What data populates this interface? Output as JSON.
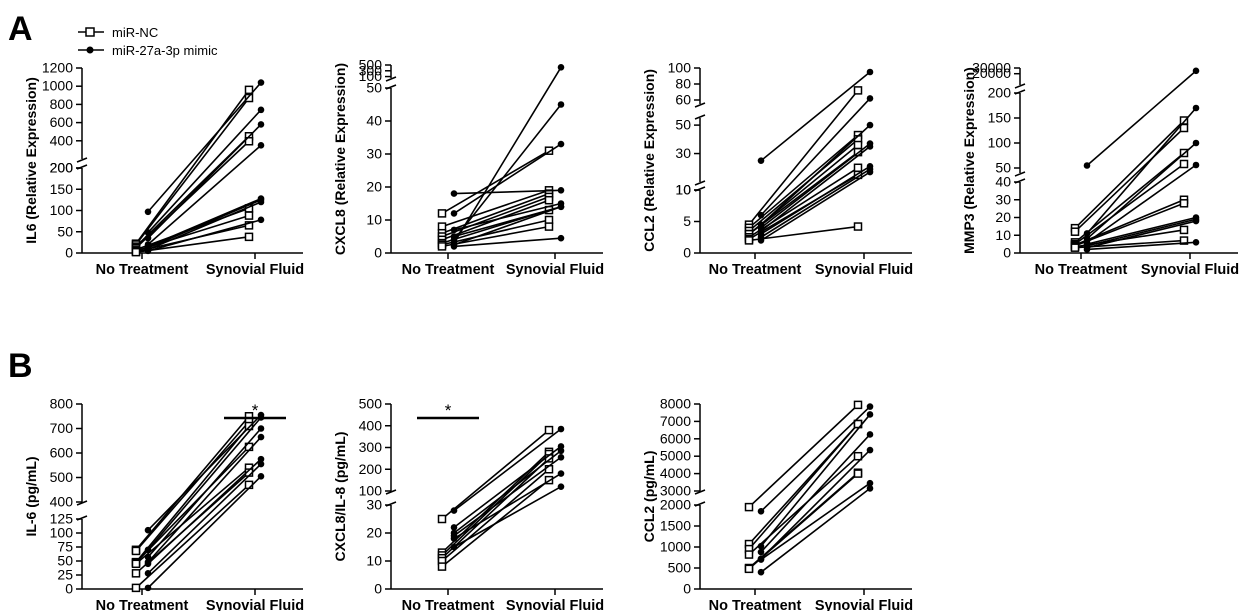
{
  "figure": {
    "panel_labels": [
      "A",
      "B"
    ]
  },
  "legend": {
    "items": [
      {
        "label": "miR-NC",
        "marker": "open-square"
      },
      {
        "label": "miR-27a-3p mimic",
        "marker": "filled-circle"
      }
    ]
  },
  "colors": {
    "ink": "#000000",
    "background": "#ffffff"
  },
  "chart_data": [
    {
      "panel": "A",
      "type": "scatter",
      "subtype": "paired before-after with broken y-axis",
      "ylabel": "IL6 (Relative Expression)",
      "categories": [
        "No Treatment",
        "Synovial Fluid"
      ],
      "y_segments": [
        {
          "range": [
            0,
            200
          ],
          "ticks": [
            0,
            50,
            100,
            150,
            200
          ]
        },
        {
          "range": [
            200,
            1200
          ],
          "ticks": [
            200,
            400,
            600,
            800,
            1000,
            1200
          ]
        }
      ],
      "series": [
        {
          "name": "miR-NC",
          "pairs": [
            [
              22,
              960
            ],
            [
              20,
              870
            ],
            [
              15,
              450
            ],
            [
              12,
              395
            ],
            [
              8,
              105
            ],
            [
              5,
              88
            ],
            [
              3,
              65
            ],
            [
              2,
              38
            ]
          ]
        },
        {
          "name": "miR-27a-3p mimic",
          "pairs": [
            [
              97,
              1040
            ],
            [
              48,
              740
            ],
            [
              35,
              580
            ],
            [
              20,
              350
            ],
            [
              15,
              128
            ],
            [
              12,
              125
            ],
            [
              8,
              120
            ],
            [
              5,
              78
            ]
          ]
        }
      ],
      "significance": []
    },
    {
      "panel": "A",
      "type": "scatter",
      "subtype": "paired before-after with broken y-axis",
      "ylabel": "CXCL8 (Relative Expression)",
      "categories": [
        "No Treatment",
        "Synovial Fluid"
      ],
      "y_segments": [
        {
          "range": [
            0,
            50
          ],
          "ticks": [
            0,
            10,
            20,
            30,
            40,
            50
          ]
        },
        {
          "range": [
            50,
            500
          ],
          "ticks": [
            100,
            300,
            500
          ]
        }
      ],
      "series": [
        {
          "name": "miR-NC",
          "pairs": [
            [
              12,
              31
            ],
            [
              8,
              19
            ],
            [
              6,
              18
            ],
            [
              5,
              17
            ],
            [
              4,
              16
            ],
            [
              3,
              13
            ],
            [
              2.5,
              10
            ],
            [
              2,
              8
            ]
          ]
        },
        {
          "name": "miR-27a-3p mimic",
          "pairs": [
            [
              18,
              19
            ],
            [
              12,
              33
            ],
            [
              7,
              15
            ],
            [
              5,
              14
            ],
            [
              4,
              45
            ],
            [
              3,
              420
            ],
            [
              2.5,
              14
            ],
            [
              2,
              4.5
            ]
          ]
        }
      ],
      "significance": []
    },
    {
      "panel": "A",
      "type": "scatter",
      "subtype": "paired before-after with broken y-axis",
      "ylabel": "CCL2 (Relative Expression)",
      "categories": [
        "No Treatment",
        "Synovial Fluid"
      ],
      "y_segments": [
        {
          "range": [
            0,
            10
          ],
          "ticks": [
            0,
            5,
            10
          ]
        },
        {
          "range": [
            10,
            55
          ],
          "ticks": [
            10,
            30,
            50
          ]
        },
        {
          "range": [
            55,
            100
          ],
          "ticks": [
            60,
            80,
            100
          ]
        }
      ],
      "series": [
        {
          "name": "miR-NC",
          "pairs": [
            [
              4.5,
              72
            ],
            [
              4,
              43
            ],
            [
              3.5,
              40
            ],
            [
              3,
              36
            ],
            [
              3,
              31
            ],
            [
              2.5,
              20
            ],
            [
              2.2,
              15
            ],
            [
              2,
              4.2
            ]
          ]
        },
        {
          "name": "miR-27a-3p mimic",
          "pairs": [
            [
              25,
              95
            ],
            [
              6,
              62
            ],
            [
              4.5,
              50
            ],
            [
              4,
              37
            ],
            [
              3.5,
              35
            ],
            [
              3,
              21
            ],
            [
              2.5,
              19
            ],
            [
              2,
              17
            ]
          ]
        }
      ],
      "significance": []
    },
    {
      "panel": "A",
      "type": "scatter",
      "subtype": "paired before-after with broken y-axis",
      "ylabel": "MMP3 (Relative Expression)",
      "categories": [
        "No Treatment",
        "Synovial Fluid"
      ],
      "y_segments": [
        {
          "range": [
            0,
            40
          ],
          "ticks": [
            0,
            10,
            20,
            30,
            40
          ]
        },
        {
          "range": [
            40,
            200
          ],
          "ticks": [
            50,
            100,
            150,
            200
          ]
        },
        {
          "range": [
            200,
            30000
          ],
          "ticks": [
            20000,
            30000
          ]
        }
      ],
      "series": [
        {
          "name": "miR-NC",
          "pairs": [
            [
              14,
              145
            ],
            [
              12,
              130
            ],
            [
              6,
              80
            ],
            [
              5,
              58
            ],
            [
              4.5,
              30
            ],
            [
              4,
              28
            ],
            [
              3.5,
              13
            ],
            [
              3,
              7
            ]
          ]
        },
        {
          "name": "miR-27a-3p mimic",
          "pairs": [
            [
              55,
              25000
            ],
            [
              11,
              170
            ],
            [
              8,
              100
            ],
            [
              6,
              56
            ],
            [
              5,
              20
            ],
            [
              4,
              19
            ],
            [
              3,
              18
            ],
            [
              2,
              6
            ]
          ]
        }
      ],
      "significance": []
    },
    {
      "panel": "B",
      "type": "scatter",
      "subtype": "paired before-after with broken y-axis",
      "ylabel": "IL-6 (pg/mL)",
      "categories": [
        "No Treatment",
        "Synovial Fluid"
      ],
      "y_segments": [
        {
          "range": [
            0,
            125
          ],
          "ticks": [
            0,
            25,
            50,
            75,
            100,
            125
          ]
        },
        {
          "range": [
            400,
            800
          ],
          "ticks": [
            400,
            500,
            600,
            700,
            800
          ]
        }
      ],
      "series": [
        {
          "name": "miR-NC",
          "pairs": [
            [
              70,
              750
            ],
            [
              68,
              728
            ],
            [
              48,
              710
            ],
            [
              47,
              625
            ],
            [
              45,
              540
            ],
            [
              28,
              520
            ],
            [
              2,
              470
            ]
          ]
        },
        {
          "name": "miR-27a-3p mimic",
          "pairs": [
            [
              105,
              755
            ],
            [
              70,
              745
            ],
            [
              57,
              700
            ],
            [
              48,
              665
            ],
            [
              45,
              575
            ],
            [
              28,
              555
            ],
            [
              2,
              505
            ]
          ]
        }
      ],
      "significance": [
        {
          "category": "Synovial Fluid",
          "label": "*"
        }
      ]
    },
    {
      "panel": "B",
      "type": "scatter",
      "subtype": "paired before-after with broken y-axis",
      "ylabel": "CXCL8/IL-8 (pg/mL)",
      "categories": [
        "No Treatment",
        "Synovial Fluid"
      ],
      "y_segments": [
        {
          "range": [
            0,
            30
          ],
          "ticks": [
            0,
            10,
            20,
            30
          ]
        },
        {
          "range": [
            100,
            500
          ],
          "ticks": [
            100,
            200,
            300,
            400,
            500
          ]
        }
      ],
      "series": [
        {
          "name": "miR-NC",
          "pairs": [
            [
              25,
              380
            ],
            [
              13,
              280
            ],
            [
              12,
              270
            ],
            [
              11,
              250
            ],
            [
              10,
              200
            ],
            [
              8,
              150
            ]
          ]
        },
        {
          "name": "miR-27a-3p mimic",
          "pairs": [
            [
              28,
              385
            ],
            [
              22,
              305
            ],
            [
              20,
              285
            ],
            [
              19,
              255
            ],
            [
              18,
              180
            ],
            [
              15,
              120
            ]
          ]
        }
      ],
      "significance": [
        {
          "category": "No Treatment",
          "label": "*"
        }
      ]
    },
    {
      "panel": "B",
      "type": "scatter",
      "subtype": "paired before-after with broken y-axis",
      "ylabel": "CCL2 (pg/mL)",
      "categories": [
        "No Treatment",
        "Synovial Fluid"
      ],
      "y_segments": [
        {
          "range": [
            0,
            2000
          ],
          "ticks": [
            0,
            500,
            1000,
            1500,
            2000
          ]
        },
        {
          "range": [
            3000,
            8000
          ],
          "ticks": [
            3000,
            4000,
            5000,
            6000,
            7000,
            8000
          ]
        }
      ],
      "series": [
        {
          "name": "miR-NC",
          "pairs": [
            [
              1950,
              7950
            ],
            [
              1070,
              6850
            ],
            [
              950,
              6850
            ],
            [
              820,
              5000
            ],
            [
              500,
              4050
            ],
            [
              480,
              4000
            ]
          ]
        },
        {
          "name": "miR-27a-3p mimic",
          "pairs": [
            [
              1850,
              7850
            ],
            [
              1020,
              7400
            ],
            [
              880,
              6250
            ],
            [
              720,
              5350
            ],
            [
              700,
              3450
            ],
            [
              400,
              3150
            ]
          ]
        }
      ],
      "significance": []
    }
  ]
}
